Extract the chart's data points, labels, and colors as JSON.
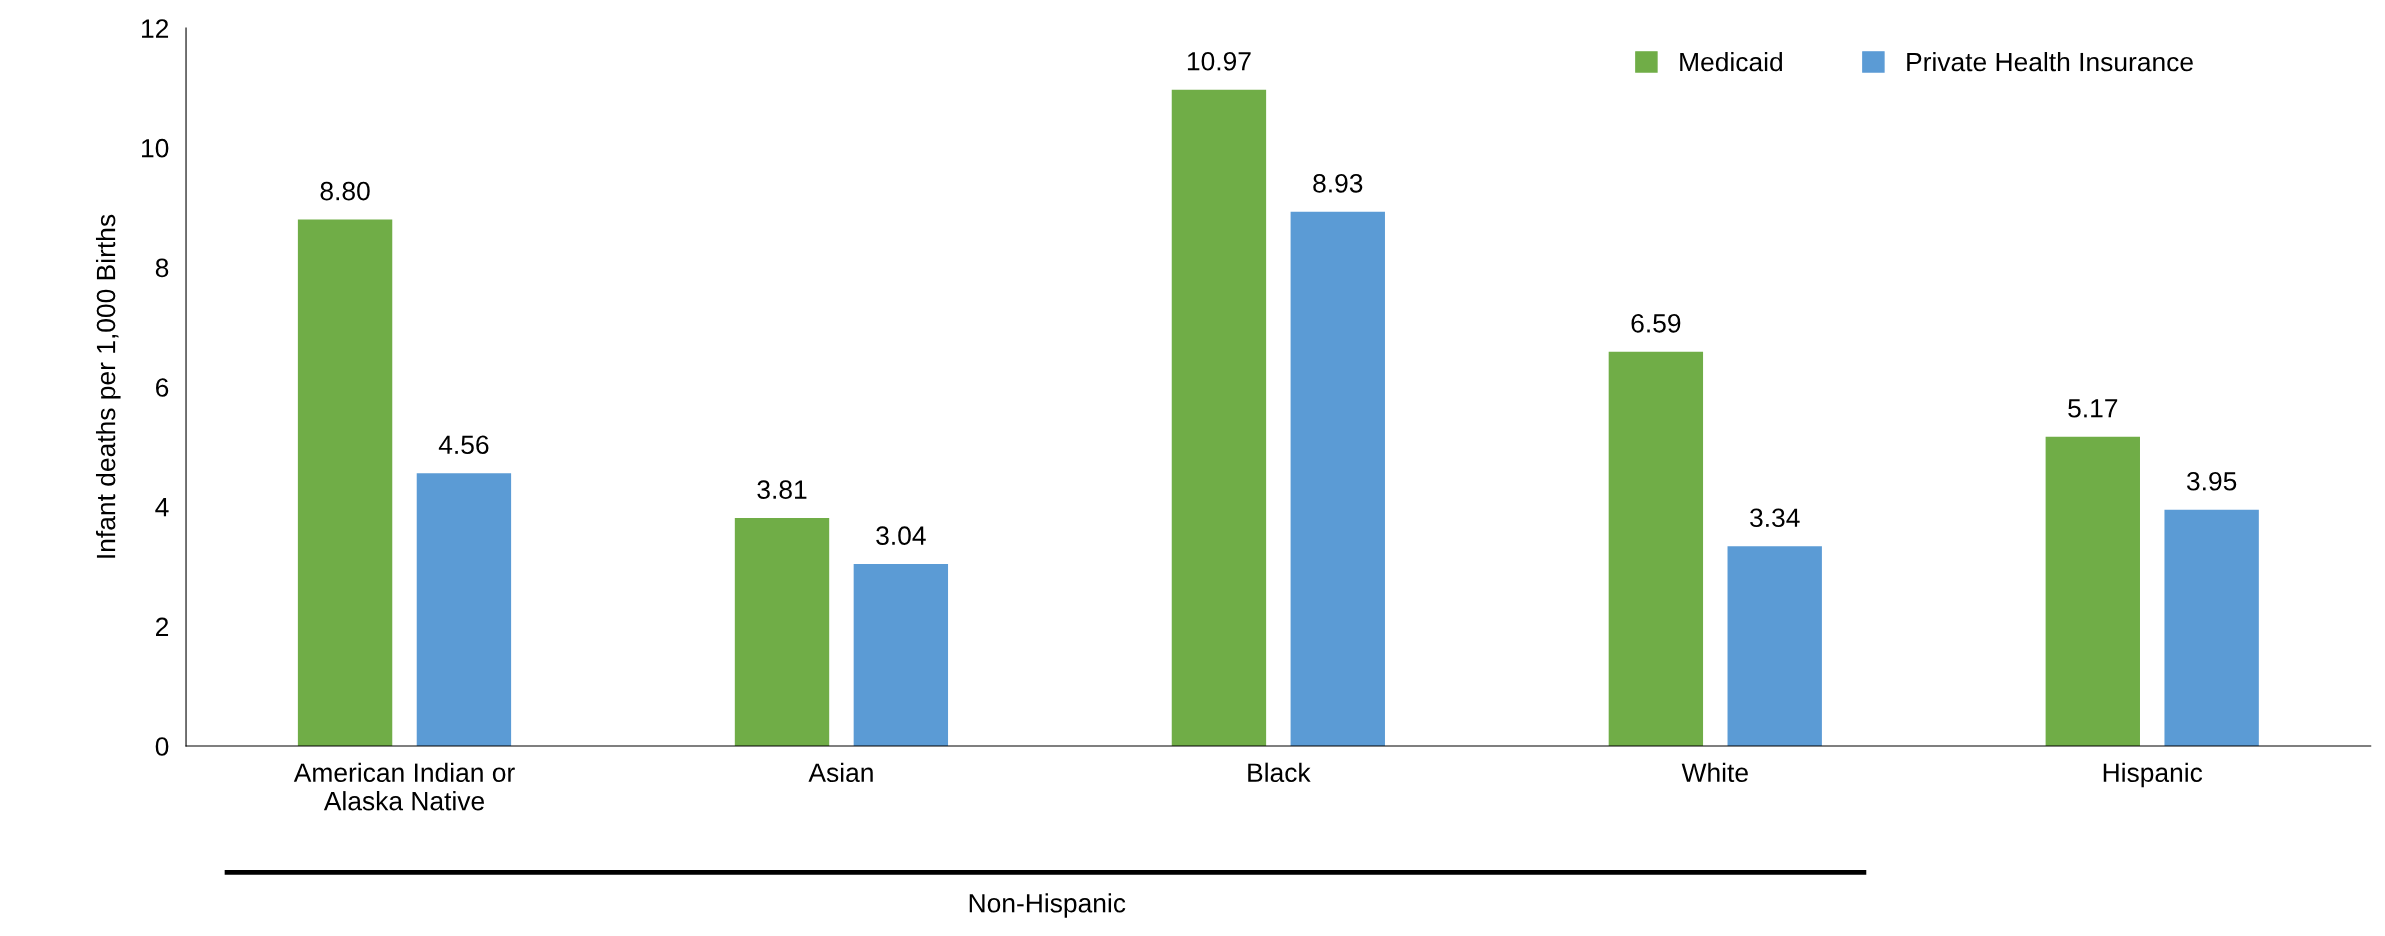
{
  "chart_data": {
    "type": "bar",
    "ylabel": "Infant deaths per 1,000 Births",
    "categories": [
      "American Indian or\nAlaska Native",
      "Asian",
      "Black",
      "White",
      "Hispanic"
    ],
    "series": [
      {
        "name": "Medicaid",
        "color": "#70ad47",
        "values": [
          8.8,
          3.81,
          10.97,
          6.59,
          5.17
        ],
        "value_labels": [
          "8.80",
          "3.81",
          "10.97",
          "6.59",
          "5.17"
        ]
      },
      {
        "name": "Private Health Insurance",
        "color": "#5b9bd5",
        "values": [
          4.56,
          3.04,
          8.93,
          3.34,
          3.95
        ],
        "value_labels": [
          "4.56",
          "3.04",
          "8.93",
          "3.34",
          "3.95"
        ]
      }
    ],
    "ylim": [
      0,
      12
    ],
    "yticks": [
      0,
      2,
      4,
      6,
      8,
      10,
      12
    ],
    "grid": false,
    "legend": "top right",
    "annotations": [
      "Non-Hispanic"
    ]
  }
}
